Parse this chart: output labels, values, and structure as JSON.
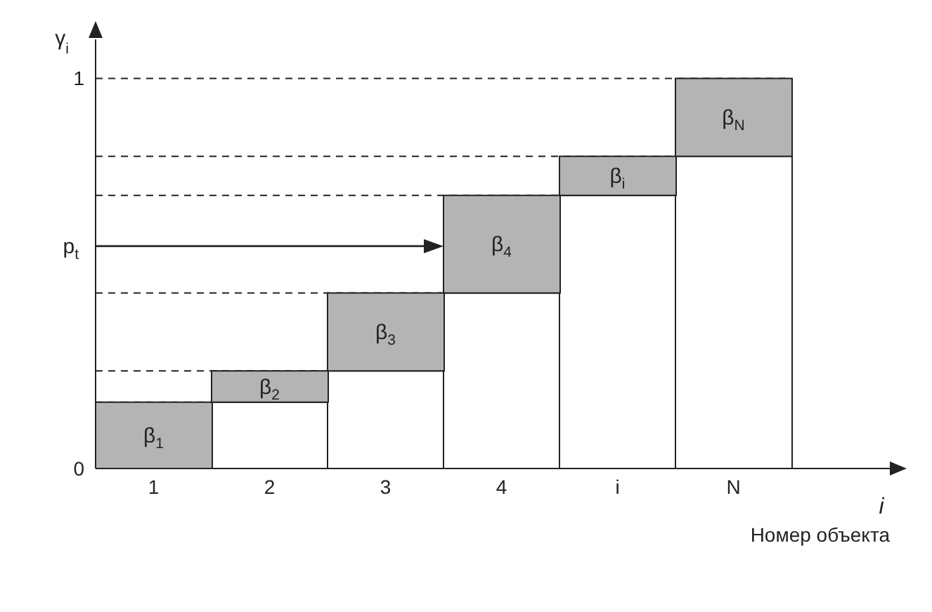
{
  "chart_data": {
    "type": "bar",
    "stacked": true,
    "ylabel": "γ$_{i}$",
    "xlabel": "i",
    "annotations": [
      "β$_{1}$",
      "β$_{2}$",
      "β$_{3}$",
      "β$_{4}$",
      "β$_{i}$",
      "β$_{N}$",
      "Номер объекта"
    ],
    "categories": [
      "1",
      "2",
      "3",
      "4",
      "i",
      "N"
    ],
    "series": [
      {
        "color": "#ffffff",
        "values": [
          0,
          0.17,
          0.25,
          0.45,
          0.7,
          0.8
        ]
      },
      {
        "color": "#b4b4b4",
        "values": [
          0.17,
          0.08,
          0.2,
          0.25,
          0.1,
          0.2
        ]
      }
    ],
    "ylim": [
      0,
      1.1
    ],
    "yticks": [
      0,
      1
    ],
    "grid": false,
    "legend": false,
    "ref_lines": [
      {
        "axis": "y",
        "value": 0.17,
        "line_style": "dashed"
      },
      {
        "axis": "y",
        "value": 0.25,
        "line_style": "dashed"
      },
      {
        "axis": "y",
        "value": 0.45,
        "line_style": "dashed"
      },
      {
        "axis": "y",
        "value": 0.7,
        "line_style": "dashed"
      },
      {
        "axis": "y",
        "value": 0.8,
        "line_style": "dashed"
      },
      {
        "axis": "y",
        "value": 1,
        "line_style": "dashed"
      },
      {
        "axis": "y",
        "value": 0.57,
        "label": "p$_{t}$",
        "line_style": "solid"
      }
    ]
  }
}
